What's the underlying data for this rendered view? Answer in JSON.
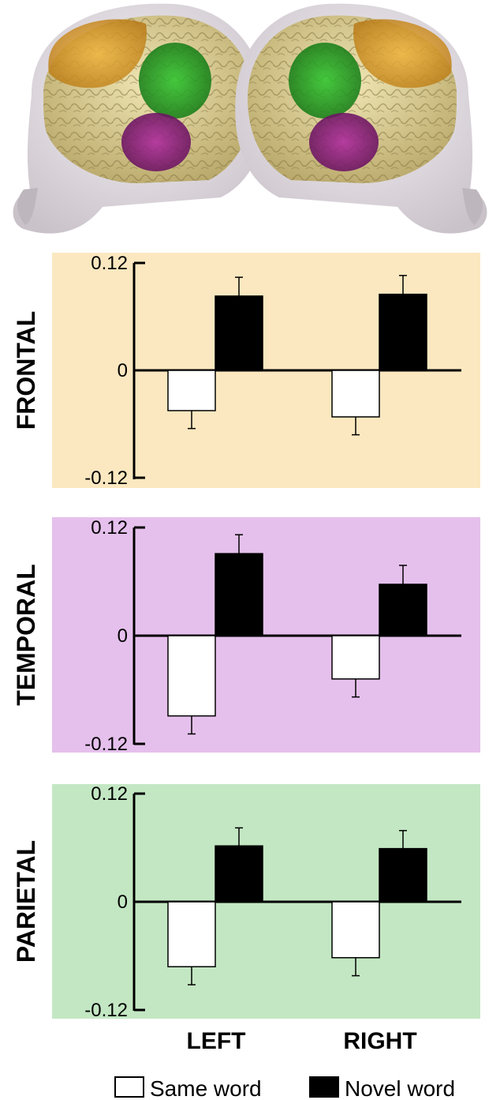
{
  "colors": {
    "frontal_bg": "#fbe8c0",
    "temporal_bg": "#e6c0ec",
    "parietal_bg": "#c2e7c2",
    "same_word_fill": "#ffffff",
    "novel_word_fill": "#000000",
    "frontal_region": "#e3a62a",
    "temporal_region": "#a0208c",
    "parietal_region": "#25a525",
    "brain_tissue": "#e6daa0",
    "head_shell": "#dcd6dc"
  },
  "icons": {
    "brain_left": "brain-lateral-left-icon",
    "brain_right": "brain-lateral-right-icon"
  },
  "chart_data": [
    {
      "type": "bar",
      "panel_label": "FRONTAL",
      "categories": [
        "LEFT",
        "RIGHT"
      ],
      "ylim": [
        -0.12,
        0.12
      ],
      "yticks": [
        "0.12",
        "0",
        "-0.12"
      ],
      "series": [
        {
          "name": "Same word",
          "values": [
            -0.045,
            -0.052
          ],
          "errors": [
            0.02,
            0.02
          ]
        },
        {
          "name": "Novel word",
          "values": [
            0.083,
            0.085
          ],
          "errors": [
            0.021,
            0.021
          ]
        }
      ]
    },
    {
      "type": "bar",
      "panel_label": "TEMPORAL",
      "categories": [
        "LEFT",
        "RIGHT"
      ],
      "ylim": [
        -0.12,
        0.12
      ],
      "yticks": [
        "0.12",
        "0",
        "-0.12"
      ],
      "series": [
        {
          "name": "Same word",
          "values": [
            -0.089,
            -0.048
          ],
          "errors": [
            0.02,
            0.02
          ]
        },
        {
          "name": "Novel word",
          "values": [
            0.091,
            0.057
          ],
          "errors": [
            0.021,
            0.021
          ]
        }
      ]
    },
    {
      "type": "bar",
      "panel_label": "PARIETAL",
      "categories": [
        "LEFT",
        "RIGHT"
      ],
      "ylim": [
        -0.12,
        0.12
      ],
      "yticks": [
        "0.12",
        "0",
        "-0.12"
      ],
      "series": [
        {
          "name": "Same word",
          "values": [
            -0.072,
            -0.062
          ],
          "errors": [
            0.02,
            0.02
          ]
        },
        {
          "name": "Novel word",
          "values": [
            0.062,
            0.059
          ],
          "errors": [
            0.02,
            0.02
          ]
        }
      ]
    }
  ],
  "x_labels": [
    "LEFT",
    "RIGHT"
  ],
  "legend": [
    {
      "label": "Same word",
      "swatch": "#ffffff"
    },
    {
      "label": "Novel word",
      "swatch": "#000000"
    }
  ]
}
